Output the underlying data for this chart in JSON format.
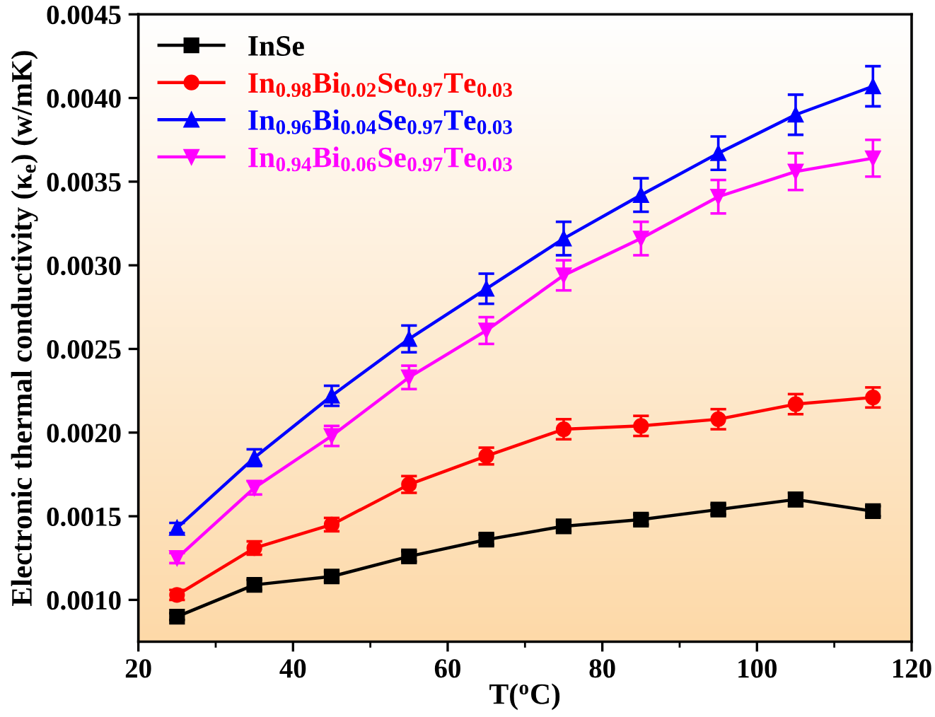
{
  "chart_data": {
    "type": "line",
    "xlabel": "T($^{o}$C)",
    "ylabel": "Electronic thermal conductivity (κ$_{e}$) (w/mK)",
    "x": [
      25,
      35,
      45,
      55,
      65,
      75,
      85,
      95,
      105,
      115
    ],
    "xlim": [
      20,
      120
    ],
    "xticks": [
      20,
      40,
      60,
      80,
      100,
      120
    ],
    "ylim": [
      0.00075,
      0.0045
    ],
    "yticks": [
      {
        "value": 0.001,
        "label": "0.0010"
      },
      {
        "value": 0.0015,
        "label": "0.0015"
      },
      {
        "value": 0.002,
        "label": "0.0020"
      },
      {
        "value": 0.0025,
        "label": "0.0025"
      },
      {
        "value": 0.003,
        "label": "0.0030"
      },
      {
        "value": 0.0035,
        "label": "0.0035"
      },
      {
        "value": 0.004,
        "label": "0.0040"
      },
      {
        "value": 0.0045,
        "label": "0.0045"
      }
    ],
    "grid": false,
    "legend": "top left",
    "line_style": "solid",
    "series": [
      {
        "name": "InSe",
        "color": "#000000",
        "marker": "square",
        "values": [
          0.0009,
          0.00109,
          0.00114,
          0.00126,
          0.00136,
          0.00144,
          0.00148,
          0.00154,
          0.0016,
          0.00153
        ],
        "errors": [
          2e-05,
          3e-05,
          3e-05,
          3e-05,
          3e-05,
          3e-05,
          3e-05,
          3e-05,
          4e-05,
          3e-05
        ]
      },
      {
        "name": "In$_{0.98}$Bi$_{0.02}$Se$_{0.97}$Te$_{0.03}$",
        "color": "#ff0000",
        "marker": "circle",
        "values": [
          0.00103,
          0.00131,
          0.00145,
          0.00169,
          0.00186,
          0.00202,
          0.00204,
          0.00208,
          0.00217,
          0.00221
        ],
        "errors": [
          3e-05,
          4e-05,
          4e-05,
          5e-05,
          5e-05,
          6e-05,
          6e-05,
          6e-05,
          6e-05,
          6e-05
        ]
      },
      {
        "name": "In$_{0.96}$Bi$_{0.04}$Se$_{0.97}$Te$_{0.03}$",
        "color": "#0000ff",
        "marker": "triangle",
        "values": [
          0.00143,
          0.00185,
          0.00222,
          0.00256,
          0.00286,
          0.00316,
          0.00342,
          0.00367,
          0.0039,
          0.00407
        ],
        "errors": [
          3e-05,
          5e-05,
          6e-05,
          8e-05,
          9e-05,
          0.0001,
          0.0001,
          0.0001,
          0.00012,
          0.00012
        ]
      },
      {
        "name": "In$_{0.94}$Bi$_{0.06}$Se$_{0.97}$Te$_{0.03}$",
        "color": "#ff00ff",
        "marker": "triangle_down",
        "values": [
          0.00125,
          0.00167,
          0.00198,
          0.00233,
          0.00261,
          0.00294,
          0.00316,
          0.00341,
          0.00356,
          0.00364
        ],
        "errors": [
          3e-05,
          4e-05,
          6e-05,
          7e-05,
          8e-05,
          9e-05,
          0.0001,
          0.0001,
          0.00011,
          0.00011
        ]
      }
    ]
  }
}
